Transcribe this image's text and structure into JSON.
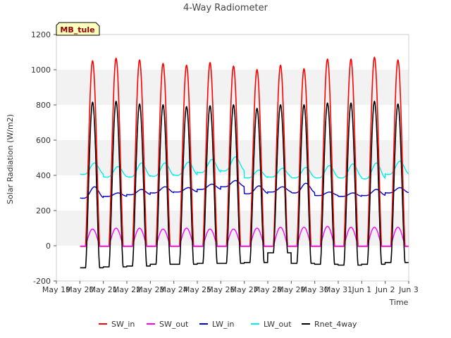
{
  "chart_data": {
    "type": "line",
    "title": "4-Way Radiometer",
    "site_label": "MB_tule",
    "xlabel": "Time",
    "ylabel": "Solar Radiation (W/m2)",
    "xlim": [
      "2024-05-19",
      "2024-06-03"
    ],
    "ylim": [
      -200,
      1200
    ],
    "x_ticks": [
      {
        "date": "2024-05-19",
        "label": "May 19"
      },
      {
        "date": "2024-05-20",
        "label": "May 20"
      },
      {
        "date": "2024-05-21",
        "label": "May 21"
      },
      {
        "date": "2024-05-22",
        "label": "May 22"
      },
      {
        "date": "2024-05-23",
        "label": "May 23"
      },
      {
        "date": "2024-05-24",
        "label": "May 24"
      },
      {
        "date": "2024-05-25",
        "label": "May 25"
      },
      {
        "date": "2024-05-26",
        "label": "May 26"
      },
      {
        "date": "2024-05-27",
        "label": "May 27"
      },
      {
        "date": "2024-05-28",
        "label": "May 28"
      },
      {
        "date": "2024-05-29",
        "label": "May 29"
      },
      {
        "date": "2024-05-30",
        "label": "May 30"
      },
      {
        "date": "2024-05-31",
        "label": "May 31"
      },
      {
        "date": "2024-06-01",
        "label": "Jun 1"
      },
      {
        "date": "2024-06-02",
        "label": "Jun 2"
      },
      {
        "date": "2024-06-03",
        "label": "Jun 3"
      }
    ],
    "y_ticks": [
      -200,
      0,
      200,
      400,
      600,
      800,
      1000,
      1200
    ],
    "grid": "horizontal alternating bands",
    "legend_position": "bottom",
    "series": [
      {
        "name": "SW_in",
        "color": "#ff0000",
        "note_values": "daily peak (W/m2) at solar noon, near-zero at night",
        "daily": [
          {
            "date": "2024-05-20",
            "peak": 1050,
            "night": -3
          },
          {
            "date": "2024-05-21",
            "peak": 1065,
            "night": -3
          },
          {
            "date": "2024-05-22",
            "peak": 1055,
            "night": -3
          },
          {
            "date": "2024-05-23",
            "peak": 1035,
            "night": -3
          },
          {
            "date": "2024-05-24",
            "peak": 1025,
            "night": -3
          },
          {
            "date": "2024-05-25",
            "peak": 1040,
            "night": -3
          },
          {
            "date": "2024-05-26",
            "peak": 1020,
            "night": -3
          },
          {
            "date": "2024-05-27",
            "peak": 1000,
            "night": -3
          },
          {
            "date": "2024-05-28",
            "peak": 1025,
            "night": -3
          },
          {
            "date": "2024-05-29",
            "peak": 1005,
            "night": -3
          },
          {
            "date": "2024-05-30",
            "peak": 1060,
            "night": -3
          },
          {
            "date": "2024-05-31",
            "peak": 1060,
            "night": -3
          },
          {
            "date": "2024-06-01",
            "peak": 1070,
            "night": -3
          },
          {
            "date": "2024-06-02",
            "peak": 1055,
            "night": -3
          }
        ]
      },
      {
        "name": "SW_out",
        "color": "#ff00ff",
        "daily": [
          {
            "date": "2024-05-20",
            "peak": 95,
            "night": -2
          },
          {
            "date": "2024-05-21",
            "peak": 100,
            "night": -2
          },
          {
            "date": "2024-05-22",
            "peak": 100,
            "night": -2
          },
          {
            "date": "2024-05-23",
            "peak": 95,
            "night": -2
          },
          {
            "date": "2024-05-24",
            "peak": 100,
            "night": -2
          },
          {
            "date": "2024-05-25",
            "peak": 95,
            "night": -2
          },
          {
            "date": "2024-05-26",
            "peak": 95,
            "night": -2
          },
          {
            "date": "2024-05-27",
            "peak": 100,
            "night": -2
          },
          {
            "date": "2024-05-28",
            "peak": 105,
            "night": -2
          },
          {
            "date": "2024-05-29",
            "peak": 105,
            "night": -2
          },
          {
            "date": "2024-05-30",
            "peak": 110,
            "night": -2
          },
          {
            "date": "2024-05-31",
            "peak": 105,
            "night": -2
          },
          {
            "date": "2024-06-01",
            "peak": 105,
            "night": -2
          },
          {
            "date": "2024-06-02",
            "peak": 105,
            "night": -2
          }
        ]
      },
      {
        "name": "LW_in",
        "color": "#0000cc",
        "daily": [
          {
            "date": "2024-05-20",
            "peak": 335,
            "night": 270
          },
          {
            "date": "2024-05-21",
            "peak": 300,
            "night": 280
          },
          {
            "date": "2024-05-22",
            "peak": 320,
            "night": 290
          },
          {
            "date": "2024-05-23",
            "peak": 335,
            "night": 300
          },
          {
            "date": "2024-05-24",
            "peak": 330,
            "night": 305
          },
          {
            "date": "2024-05-25",
            "peak": 350,
            "night": 320
          },
          {
            "date": "2024-05-26",
            "peak": 370,
            "night": 335
          },
          {
            "date": "2024-05-27",
            "peak": 340,
            "night": 295
          },
          {
            "date": "2024-05-28",
            "peak": 335,
            "night": 305
          },
          {
            "date": "2024-05-29",
            "peak": 355,
            "night": 300
          },
          {
            "date": "2024-05-30",
            "peak": 305,
            "night": 285
          },
          {
            "date": "2024-05-31",
            "peak": 300,
            "night": 280
          },
          {
            "date": "2024-06-01",
            "peak": 320,
            "night": 285
          },
          {
            "date": "2024-06-02",
            "peak": 330,
            "night": 300
          }
        ]
      },
      {
        "name": "LW_out",
        "color": "#00eeee",
        "daily": [
          {
            "date": "2024-05-20",
            "peak": 470,
            "night": 405
          },
          {
            "date": "2024-05-21",
            "peak": 450,
            "night": 390
          },
          {
            "date": "2024-05-22",
            "peak": 470,
            "night": 390
          },
          {
            "date": "2024-05-23",
            "peak": 470,
            "night": 395
          },
          {
            "date": "2024-05-24",
            "peak": 475,
            "night": 400
          },
          {
            "date": "2024-05-25",
            "peak": 490,
            "night": 415
          },
          {
            "date": "2024-05-26",
            "peak": 505,
            "night": 425
          },
          {
            "date": "2024-05-27",
            "peak": 430,
            "night": 385
          },
          {
            "date": "2024-05-28",
            "peak": 440,
            "night": 390
          },
          {
            "date": "2024-05-29",
            "peak": 445,
            "night": 385
          },
          {
            "date": "2024-05-30",
            "peak": 455,
            "night": 385
          },
          {
            "date": "2024-05-31",
            "peak": 465,
            "night": 385
          },
          {
            "date": "2024-06-01",
            "peak": 470,
            "night": 380
          },
          {
            "date": "2024-06-02",
            "peak": 480,
            "night": 405
          }
        ]
      },
      {
        "name": "Rnet_4way",
        "color": "#000000",
        "daily": [
          {
            "date": "2024-05-20",
            "peak": 815,
            "night": -125
          },
          {
            "date": "2024-05-21",
            "peak": 820,
            "night": -120
          },
          {
            "date": "2024-05-22",
            "peak": 805,
            "night": -115
          },
          {
            "date": "2024-05-23",
            "peak": 800,
            "night": -105
          },
          {
            "date": "2024-05-24",
            "peak": 790,
            "night": -105
          },
          {
            "date": "2024-05-25",
            "peak": 795,
            "night": -100
          },
          {
            "date": "2024-05-26",
            "peak": 800,
            "night": -100
          },
          {
            "date": "2024-05-27",
            "peak": 780,
            "night": -95
          },
          {
            "date": "2024-05-28",
            "peak": 800,
            "night": -40
          },
          {
            "date": "2024-05-29",
            "peak": 800,
            "night": -100
          },
          {
            "date": "2024-05-30",
            "peak": 810,
            "night": -105
          },
          {
            "date": "2024-05-31",
            "peak": 810,
            "night": -110
          },
          {
            "date": "2024-06-01",
            "peak": 820,
            "night": -105
          },
          {
            "date": "2024-06-02",
            "peak": 805,
            "night": -95
          }
        ]
      }
    ]
  }
}
